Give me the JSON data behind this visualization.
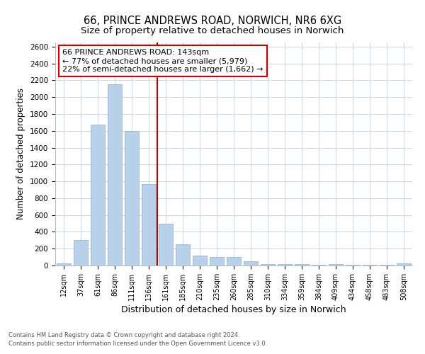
{
  "title1": "66, PRINCE ANDREWS ROAD, NORWICH, NR6 6XG",
  "title2": "Size of property relative to detached houses in Norwich",
  "xlabel": "Distribution of detached houses by size in Norwich",
  "ylabel": "Number of detached properties",
  "categories": [
    "12sqm",
    "37sqm",
    "61sqm",
    "86sqm",
    "111sqm",
    "136sqm",
    "161sqm",
    "185sqm",
    "210sqm",
    "235sqm",
    "260sqm",
    "285sqm",
    "310sqm",
    "334sqm",
    "359sqm",
    "384sqm",
    "409sqm",
    "434sqm",
    "458sqm",
    "483sqm",
    "508sqm"
  ],
  "values": [
    25,
    300,
    1675,
    2150,
    1600,
    970,
    500,
    250,
    120,
    100,
    100,
    50,
    15,
    15,
    20,
    5,
    20,
    5,
    5,
    5,
    25
  ],
  "bar_color": "#b8d0ea",
  "bar_edge_color": "#8ab0d0",
  "vline_x": 5.5,
  "vline_color": "#cc0000",
  "annotation_text": "66 PRINCE ANDREWS ROAD: 143sqm\n← 77% of detached houses are smaller (5,979)\n22% of semi-detached houses are larger (1,662) →",
  "annotation_box_color": "#cc0000",
  "annotation_text_color": "#000000",
  "ylim": [
    0,
    2650
  ],
  "yticks": [
    0,
    200,
    400,
    600,
    800,
    1000,
    1200,
    1400,
    1600,
    1800,
    2000,
    2200,
    2400,
    2600
  ],
  "footnote1": "Contains HM Land Registry data © Crown copyright and database right 2024.",
  "footnote2": "Contains public sector information licensed under the Open Government Licence v3.0.",
  "bg_color": "#ffffff",
  "grid_color": "#c8d8e8",
  "title1_fontsize": 10.5,
  "title2_fontsize": 9.5,
  "xlabel_fontsize": 9,
  "ylabel_fontsize": 8.5
}
